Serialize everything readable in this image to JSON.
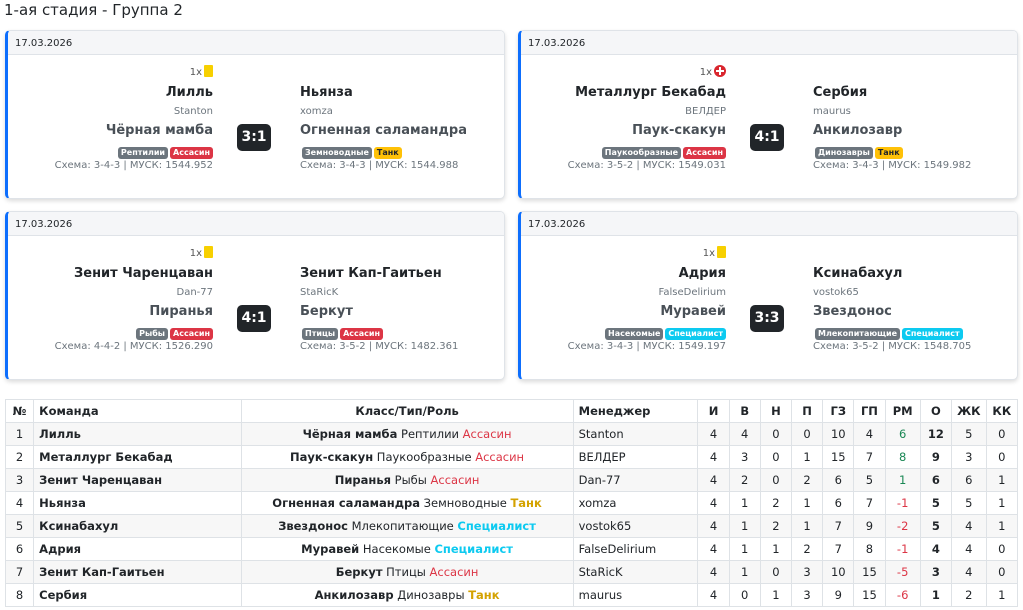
{
  "stage_title": "1-ая стадия - Группа 2",
  "matches": [
    {
      "date": "17.03.2026",
      "cards_count": "1x",
      "card_type": "yellow",
      "score": "3:1",
      "home": {
        "team": "Лилль",
        "manager": "Stanton",
        "creature": "Чёрная мамба",
        "type": "Рептилии",
        "role": "Ассасин",
        "role_class": "b-assassin",
        "schema": "Схема: 3-4-3 | МУСК: 1544.952"
      },
      "away": {
        "team": "Ньянза",
        "manager": "xomza",
        "creature": "Огненная саламандра",
        "type": "Земноводные",
        "role": "Танк",
        "role_class": "b-tank",
        "schema": "Схема: 3-4-3 | МУСК: 1544.988"
      }
    },
    {
      "date": "17.03.2026",
      "cards_count": "1x",
      "card_type": "red",
      "score": "4:1",
      "home": {
        "team": "Металлург Бекабад",
        "manager": "ВЕЛДЕР",
        "creature": "Паук-скакун",
        "type": "Паукообразные",
        "role": "Ассасин",
        "role_class": "b-assassin",
        "schema": "Схема: 3-5-2 | МУСК: 1549.031"
      },
      "away": {
        "team": "Сербия",
        "manager": "maurus",
        "creature": "Анкилозавр",
        "type": "Динозавры",
        "role": "Танк",
        "role_class": "b-tank",
        "schema": "Схема: 3-4-3 | МУСК: 1549.982"
      }
    },
    {
      "date": "17.03.2026",
      "cards_count": "1x",
      "card_type": "yellow",
      "score": "4:1",
      "home": {
        "team": "Зенит Чаренцаван",
        "manager": "Dan-77",
        "creature": "Пиранья",
        "type": "Рыбы",
        "role": "Ассасин",
        "role_class": "b-assassin",
        "schema": "Схема: 4-4-2 | МУСК: 1526.290"
      },
      "away": {
        "team": "Зенит Кап-Гаитьен",
        "manager": "StaRicK",
        "creature": "Беркут",
        "type": "Птицы",
        "role": "Ассасин",
        "role_class": "b-assassin",
        "schema": "Схема: 3-5-2 | МУСК: 1482.361"
      }
    },
    {
      "date": "17.03.2026",
      "cards_count": "1x",
      "card_type": "yellow",
      "score": "3:3",
      "home": {
        "team": "Адрия",
        "manager": "FalseDelirium",
        "creature": "Муравей",
        "type": "Насекомые",
        "role": "Специалист",
        "role_class": "b-spec",
        "schema": "Схема: 3-4-3 | МУСК: 1549.197"
      },
      "away": {
        "team": "Ксинабахул",
        "manager": "vostok65",
        "creature": "Звездонос",
        "type": "Млекопитающие",
        "role": "Специалист",
        "role_class": "b-spec",
        "schema": "Схема: 3-5-2 | МУСК: 1548.705"
      }
    }
  ],
  "table": {
    "headers": [
      "№",
      "Команда",
      "Класс/Тип/Роль",
      "Менеджер",
      "И",
      "В",
      "Н",
      "П",
      "ГЗ",
      "ГП",
      "РМ",
      "О",
      "ЖК",
      "КК"
    ],
    "rows": [
      {
        "n": "1",
        "team": "Лилль",
        "creature": "Чёрная мамба",
        "type": "Рептилии",
        "role": "Ассасин",
        "role_class": "role-assassin",
        "manager": "Stanton",
        "i": "4",
        "w": "4",
        "d": "0",
        "l": "0",
        "gf": "10",
        "ga": "4",
        "gd": "6",
        "gd_class": "pos",
        "pts": "12",
        "yc": "5",
        "rc": "0"
      },
      {
        "n": "2",
        "team": "Металлург Бекабад",
        "creature": "Паук-скакун",
        "type": "Паукообразные",
        "role": "Ассасин",
        "role_class": "role-assassin",
        "manager": "ВЕЛДЕР",
        "i": "4",
        "w": "3",
        "d": "0",
        "l": "1",
        "gf": "15",
        "ga": "7",
        "gd": "8",
        "gd_class": "pos",
        "pts": "9",
        "yc": "3",
        "rc": "0"
      },
      {
        "n": "3",
        "team": "Зенит Чаренцаван",
        "creature": "Пиранья",
        "type": "Рыбы",
        "role": "Ассасин",
        "role_class": "role-assassin",
        "manager": "Dan-77",
        "i": "4",
        "w": "2",
        "d": "0",
        "l": "2",
        "gf": "6",
        "ga": "5",
        "gd": "1",
        "gd_class": "pos",
        "pts": "6",
        "yc": "6",
        "rc": "1"
      },
      {
        "n": "4",
        "team": "Ньянза",
        "creature": "Огненная саламандра",
        "type": "Земноводные",
        "role": "Танк",
        "role_class": "role-tank",
        "manager": "xomza",
        "i": "4",
        "w": "1",
        "d": "2",
        "l": "1",
        "gf": "6",
        "ga": "7",
        "gd": "-1",
        "gd_class": "neg",
        "pts": "5",
        "yc": "5",
        "rc": "1"
      },
      {
        "n": "5",
        "team": "Ксинабахул",
        "creature": "Звездонос",
        "type": "Млекопитающие",
        "role": "Специалист",
        "role_class": "role-spec",
        "manager": "vostok65",
        "i": "4",
        "w": "1",
        "d": "2",
        "l": "1",
        "gf": "7",
        "ga": "9",
        "gd": "-2",
        "gd_class": "neg",
        "pts": "5",
        "yc": "4",
        "rc": "1"
      },
      {
        "n": "6",
        "team": "Адрия",
        "creature": "Муравей",
        "type": "Насекомые",
        "role": "Специалист",
        "role_class": "role-spec",
        "manager": "FalseDelirium",
        "i": "4",
        "w": "1",
        "d": "1",
        "l": "2",
        "gf": "7",
        "ga": "8",
        "gd": "-1",
        "gd_class": "neg",
        "pts": "4",
        "yc": "4",
        "rc": "0"
      },
      {
        "n": "7",
        "team": "Зенит Кап-Гаитьен",
        "creature": "Беркут",
        "type": "Птицы",
        "role": "Ассасин",
        "role_class": "role-assassin",
        "manager": "StaRicK",
        "i": "4",
        "w": "1",
        "d": "0",
        "l": "3",
        "gf": "10",
        "ga": "15",
        "gd": "-5",
        "gd_class": "neg",
        "pts": "3",
        "yc": "4",
        "rc": "0"
      },
      {
        "n": "8",
        "team": "Сербия",
        "creature": "Анкилозавр",
        "type": "Динозавры",
        "role": "Танк",
        "role_class": "role-tank",
        "manager": "maurus",
        "i": "4",
        "w": "0",
        "d": "1",
        "l": "3",
        "gf": "9",
        "ga": "15",
        "gd": "-6",
        "gd_class": "neg",
        "pts": "1",
        "yc": "2",
        "rc": "1"
      }
    ]
  }
}
